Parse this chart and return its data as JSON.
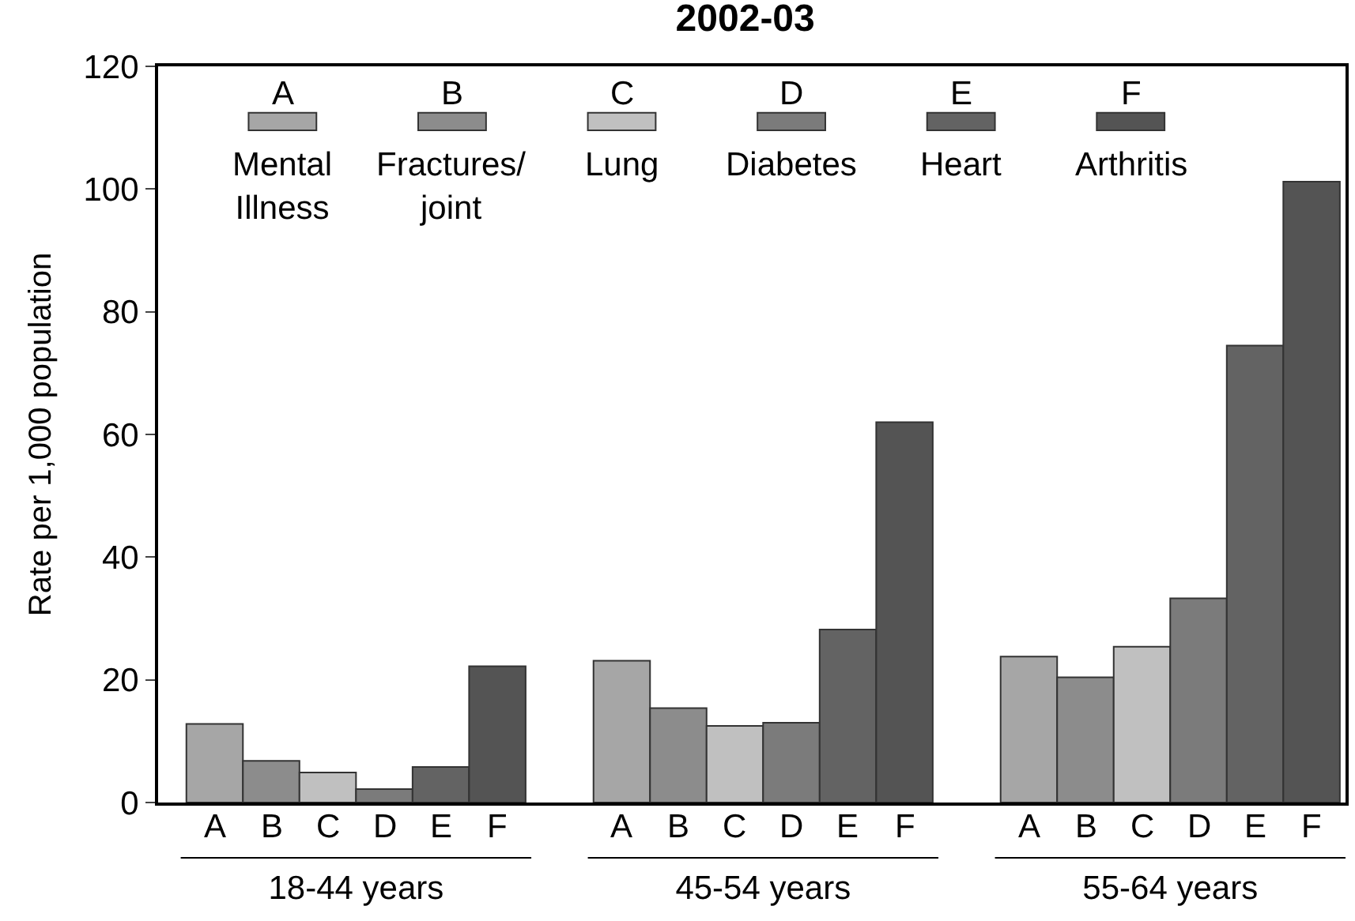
{
  "chart_data": {
    "type": "bar",
    "title": "2002-03",
    "ylabel": "Rate per 1,000 population",
    "categories": [
      "18-44 years",
      "45-54 years",
      "55-64 years"
    ],
    "series": [
      {
        "name": "Mental Illness",
        "color": "#a6a6a6",
        "values": [
          12.8,
          23.1,
          23.8
        ]
      },
      {
        "name": "Fractures/ joint",
        "color": "#8c8c8c",
        "values": [
          6.8,
          15.4,
          20.4
        ]
      },
      {
        "name": "Lung",
        "color": "#c0c0c0",
        "values": [
          4.9,
          12.5,
          25.4
        ]
      },
      {
        "name": "Diabetes",
        "color": "#7b7b7b",
        "values": [
          2.2,
          13.0,
          33.3
        ]
      },
      {
        "name": "Heart",
        "color": "#636363",
        "values": [
          5.8,
          28.2,
          74.5
        ]
      },
      {
        "name": "Arthritis",
        "color": "#545454",
        "values": [
          22.2,
          62.0,
          101.2
        ]
      }
    ],
    "annotations": [
      "A",
      "B",
      "C",
      "D",
      "E",
      "F"
    ],
    "ylim": [
      0,
      120
    ],
    "yticks": [
      0,
      20,
      40,
      60,
      80,
      100,
      120
    ],
    "legend": "top"
  }
}
